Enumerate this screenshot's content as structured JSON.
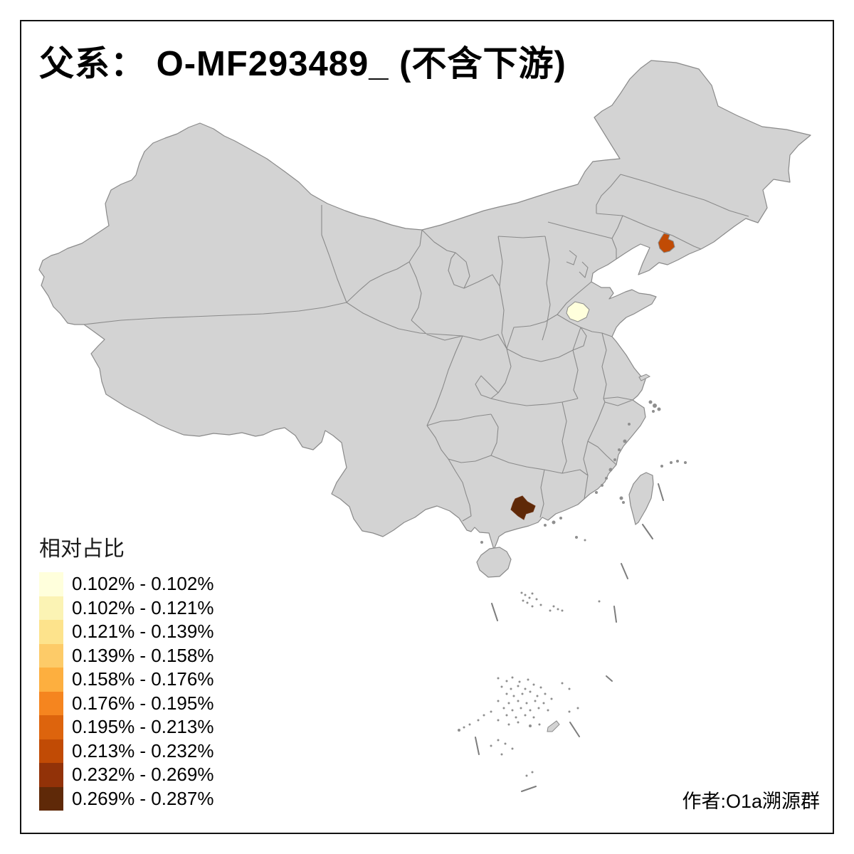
{
  "title": "父系： O-MF293489_ (不含下游)",
  "credit": "作者:O1a溯源群",
  "legend": {
    "title": "相对占比",
    "bins": [
      {
        "label": "0.102% - 0.102%",
        "color": "#FFFFDC"
      },
      {
        "label": "0.102% - 0.121%",
        "color": "#FBF3B4"
      },
      {
        "label": "0.121% - 0.139%",
        "color": "#FDE38C"
      },
      {
        "label": "0.139% - 0.158%",
        "color": "#FDCB68"
      },
      {
        "label": "0.158% - 0.176%",
        "color": "#FDAF3F"
      },
      {
        "label": "0.176% - 0.195%",
        "color": "#F5851F"
      },
      {
        "label": "0.195% - 0.213%",
        "color": "#DD640D"
      },
      {
        "label": "0.213% - 0.232%",
        "color": "#C14B05"
      },
      {
        "label": "0.232% - 0.269%",
        "color": "#923208"
      },
      {
        "label": "0.269% - 0.287%",
        "color": "#5F2908"
      }
    ]
  },
  "map": {
    "background": "#FFFFFF",
    "land_color": "#D3D3D3",
    "boundary_color": "#8A8A8A",
    "highlighted_regions": [
      {
        "name": "central-liaoning-prefecture",
        "value_range": "0.213% - 0.232%",
        "color": "#C14B05"
      },
      {
        "name": "northwest-shandong-prefecture",
        "value_range": "0.102% - 0.102%",
        "color": "#FFFFDC"
      },
      {
        "name": "western-guangdong-prefecture",
        "value_range": "0.269% - 0.287%",
        "color": "#5F2908"
      }
    ]
  },
  "chart_data": {
    "type": "choropleth",
    "title": "父系： O-MF293489_ (不含下游)",
    "legend_title": "相对占比",
    "unit": "%",
    "bin_edges_percent": [
      0.102,
      0.102,
      0.121,
      0.139,
      0.158,
      0.176,
      0.195,
      0.213,
      0.232,
      0.269,
      0.287
    ],
    "regions": [
      {
        "region": "central-liaoning-prefecture",
        "value_range": "0.213% - 0.232%"
      },
      {
        "region": "northwest-shandong-prefecture",
        "value_range": "0.102% - 0.102%"
      },
      {
        "region": "western-guangdong-prefecture",
        "value_range": "0.269% - 0.287%"
      }
    ],
    "no_data_fill": "gray",
    "legend_position": "bottom-left"
  }
}
